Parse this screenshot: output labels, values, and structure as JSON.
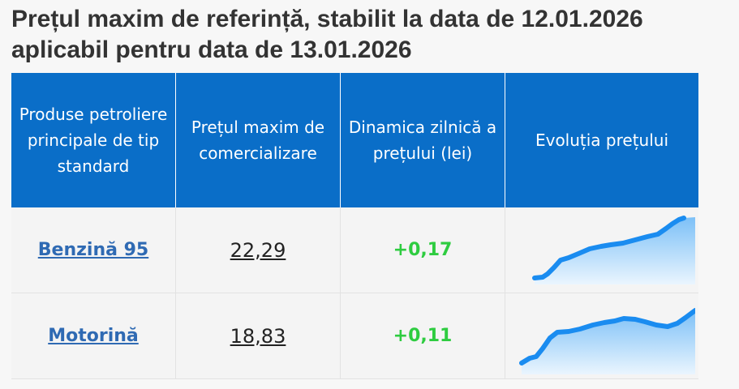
{
  "title": "Prețul maxim de referință, stabilit la data de 12.01.2026 aplicabil pentru data de 13.01.2026",
  "table": {
    "headers": {
      "product": "Produse petroliere principale de tip standard",
      "price": "Prețul maxim de comercializare",
      "dynamics": "Dinamica zilnică a prețului (lei)",
      "evolution": "Evoluția prețului"
    },
    "rows": [
      {
        "product": "Benzină 95",
        "price": "22,29",
        "dynamics": "+0,17"
      },
      {
        "product": "Motorină",
        "price": "18,83",
        "dynamics": "+0,11"
      }
    ]
  },
  "colors": {
    "header_bg": "#0a6ec8",
    "link": "#2f6ab3",
    "positive": "#2ecc40",
    "sparkline_line": "#1a8cf0"
  },
  "icons": [
    "benzina-sparkline",
    "motorina-sparkline"
  ]
}
